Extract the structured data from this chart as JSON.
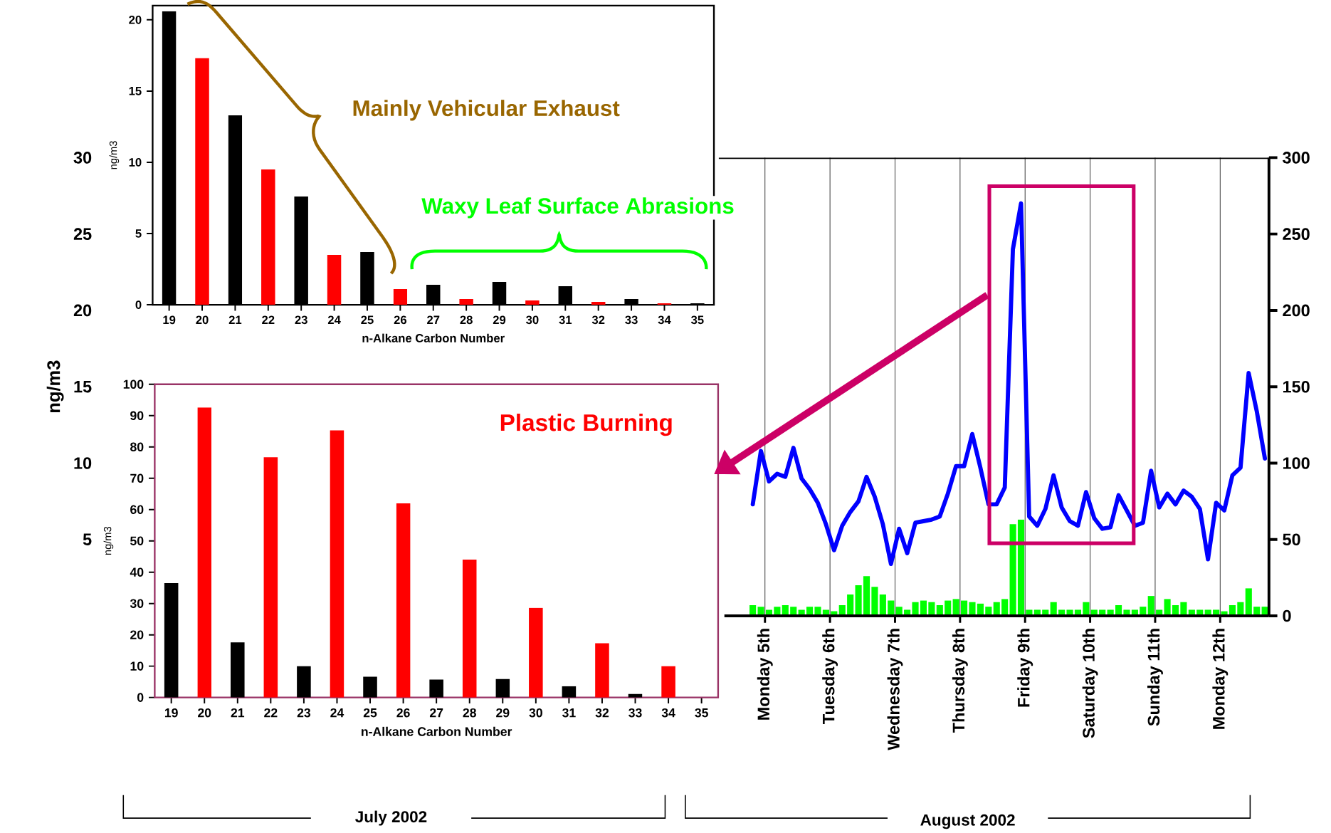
{
  "chart_data": [
    {
      "type": "bar",
      "categories": [
        "19",
        "20",
        "21",
        "22",
        "23",
        "24",
        "25",
        "26",
        "27",
        "28",
        "29",
        "30",
        "31",
        "32",
        "33",
        "34",
        "35"
      ],
      "values": [
        20.6,
        17.3,
        13.3,
        9.5,
        7.6,
        3.5,
        3.7,
        1.1,
        1.4,
        0.4,
        1.6,
        0.3,
        1.3,
        0.2,
        0.4,
        0.1,
        0.1
      ],
      "colors": [
        "#000000",
        "#ff0000",
        "#000000",
        "#ff0000",
        "#000000",
        "#ff0000",
        "#000000",
        "#ff0000",
        "#000000",
        "#ff0000",
        "#000000",
        "#ff0000",
        "#000000",
        "#ff0000",
        "#000000",
        "#ff0000",
        "#000000"
      ],
      "ylim": [
        0,
        21
      ],
      "yticks": [
        0,
        5,
        10,
        15,
        20
      ],
      "ylabel": "ng/m3",
      "xlabel": "n-Alkane Carbon Number",
      "annotations": [
        "Mainly Vehicular Exhaust",
        "Waxy Leaf Surface Abrasions"
      ]
    },
    {
      "type": "bar",
      "categories": [
        "19",
        "20",
        "21",
        "22",
        "23",
        "24",
        "25",
        "26",
        "27",
        "28",
        "29",
        "30",
        "31",
        "32",
        "33",
        "34",
        "35"
      ],
      "values": [
        36.5,
        92.6,
        17.6,
        76.7,
        10,
        85.3,
        6.6,
        62,
        5.7,
        44,
        5.9,
        28.6,
        3.6,
        17.3,
        1.1,
        10,
        0
      ],
      "colors": [
        "#000000",
        "#ff0000",
        "#000000",
        "#ff0000",
        "#000000",
        "#ff0000",
        "#000000",
        "#ff0000",
        "#000000",
        "#ff0000",
        "#000000",
        "#ff0000",
        "#000000",
        "#ff0000",
        "#000000",
        "#ff0000",
        "#000000"
      ],
      "ylim": [
        0,
        100
      ],
      "yticks": [
        0,
        10,
        20,
        30,
        40,
        50,
        60,
        70,
        80,
        90,
        100
      ],
      "ylabel": "ng/m3",
      "xlabel": "n-Alkane Carbon Number",
      "annotations": [
        "Plastic Burning"
      ]
    },
    {
      "type": "bar",
      "x": [
        "2002-08-04T19:30",
        "2002-08-04T22:30",
        "2002-08-05T01:30",
        "2002-08-05T04:30",
        "2002-08-05T07:30",
        "2002-08-05T10:30",
        "2002-08-05T13:30",
        "2002-08-05T16:30",
        "2002-08-05T19:30",
        "2002-08-05T22:30",
        "2002-08-06T01:30",
        "2002-08-06T04:30",
        "2002-08-06T07:30",
        "2002-08-06T10:30",
        "2002-08-06T13:30",
        "2002-08-06T16:30",
        "2002-08-06T19:30",
        "2002-08-06T22:30",
        "2002-08-07T01:30",
        "2002-08-07T04:30",
        "2002-08-07T07:30",
        "2002-08-07T10:30",
        "2002-08-07T13:30",
        "2002-08-07T16:30",
        "2002-08-07T19:30",
        "2002-08-07T22:30",
        "2002-08-08T01:30",
        "2002-08-08T04:30",
        "2002-08-08T07:30",
        "2002-08-08T10:30",
        "2002-08-08T13:30",
        "2002-08-08T16:30",
        "2002-08-08T19:30",
        "2002-08-08T22:30",
        "2002-08-09T01:30",
        "2002-08-09T04:30",
        "2002-08-09T07:30",
        "2002-08-09T10:30",
        "2002-08-09T13:30",
        "2002-08-09T16:30",
        "2002-08-09T19:30",
        "2002-08-09T22:30",
        "2002-08-10T01:30",
        "2002-08-10T04:30",
        "2002-08-10T07:30",
        "2002-08-10T10:30",
        "2002-08-10T13:30",
        "2002-08-10T16:30",
        "2002-08-10T19:30",
        "2002-08-10T22:30",
        "2002-08-11T01:30",
        "2002-08-11T04:30",
        "2002-08-11T07:30",
        "2002-08-11T10:30",
        "2002-08-11T13:30",
        "2002-08-11T16:30",
        "2002-08-11T19:30",
        "2002-08-11T22:30",
        "2002-08-12T01:30",
        "2002-08-12T04:30",
        "2002-08-12T07:30",
        "2002-08-12T10:30",
        "2002-08-12T13:30",
        "2002-08-12T16:30"
      ],
      "series": [
        {
          "type": "bar",
          "color": "#00ff00",
          "values": [
            0.7,
            0.6,
            0.4,
            0.6,
            0.7,
            0.6,
            0.4,
            0.6,
            0.6,
            0.4,
            0.3,
            0.7,
            1.4,
            2.0,
            2.6,
            1.9,
            1.4,
            1.0,
            0.6,
            0.4,
            0.9,
            1.0,
            0.9,
            0.7,
            1.0,
            1.1,
            1.0,
            0.9,
            0.8,
            0.6,
            0.9,
            1.1,
            6.0,
            6.3,
            0.4,
            0.4,
            0.4,
            0.9,
            0.4,
            0.4,
            0.4,
            0.9,
            0.4,
            0.4,
            0.4,
            0.7,
            0.4,
            0.4,
            0.6,
            1.3,
            0.4,
            1.1,
            0.7,
            0.9,
            0.4,
            0.4,
            0.4,
            0.4,
            0.3,
            0.7,
            0.9,
            1.8,
            0.6,
            0.6
          ]
        },
        {
          "type": "line",
          "axis": "y2",
          "color": "#0000ff",
          "values": [
            73,
            108,
            88,
            93,
            91,
            110,
            90,
            83,
            74,
            60,
            43,
            59,
            68,
            75,
            91,
            78,
            60,
            34,
            57,
            41,
            61,
            62,
            63,
            65,
            80,
            98,
            98,
            119,
            97,
            73,
            73,
            84,
            240,
            270,
            65,
            59,
            70,
            92,
            71,
            62,
            59,
            81,
            64,
            57,
            58,
            79,
            69,
            59,
            61,
            95,
            71,
            80,
            73,
            82,
            78,
            70,
            37,
            74,
            69,
            92,
            97,
            159,
            134,
            103
          ]
        }
      ],
      "ylabel": "ng/m3",
      "ylim": [
        0,
        30
      ],
      "yticks": [
        5,
        10,
        15,
        20,
        25,
        30
      ],
      "y2lim": [
        0,
        300
      ],
      "y2ticks": [
        0,
        50,
        100,
        150,
        200,
        250,
        300
      ],
      "xlim": [
        "2002-07-25T20:00",
        "2002-08-12T18:00"
      ],
      "xticks": [
        {
          "value": "2002-08-05",
          "label": "Monday 5th"
        },
        {
          "value": "2002-08-06",
          "label": "Tuesday 6th"
        },
        {
          "value": "2002-08-07",
          "label": "Wednesday 7th"
        },
        {
          "value": "2002-08-08",
          "label": "Thursday 8th"
        },
        {
          "value": "2002-08-09",
          "label": "Friday 9th"
        },
        {
          "value": "2002-08-10",
          "label": "Saturday 10th"
        },
        {
          "value": "2002-08-11",
          "label": "Sunday 11th"
        },
        {
          "value": "2002-08-12",
          "label": "Monday 12th"
        }
      ],
      "grid": "x",
      "annotations": [
        "July 2002",
        "August 2002"
      ]
    }
  ]
}
